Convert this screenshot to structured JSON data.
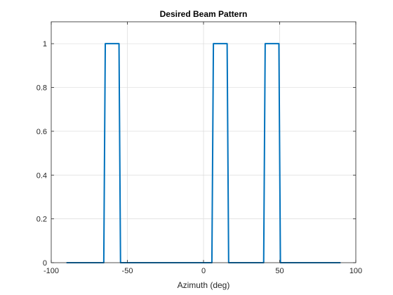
{
  "chart_data": {
    "type": "line",
    "title": "Desired Beam Pattern",
    "xlabel": "Azimuth (deg)",
    "ylabel": "",
    "xlim": [
      -100,
      100
    ],
    "ylim": [
      0,
      1.1
    ],
    "xticks": [
      -100,
      -50,
      0,
      50,
      100
    ],
    "xtick_labels": [
      "-100",
      "-50",
      "0",
      "50",
      "100"
    ],
    "yticks": [
      0,
      0.2,
      0.4,
      0.6,
      0.8,
      1
    ],
    "ytick_labels": [
      "0",
      "0.2",
      "0.4",
      "0.6",
      "0.8",
      "1"
    ],
    "grid": true,
    "legend": "none",
    "series": [
      {
        "color": "#0072BD",
        "x": [
          -90,
          -65.5,
          -64.5,
          -55.5,
          -54.5,
          5.5,
          6.5,
          15.5,
          16.5,
          39.5,
          40.5,
          49.5,
          50.5,
          90
        ],
        "y": [
          0,
          0,
          1,
          1,
          0,
          0,
          1,
          1,
          0,
          0,
          1,
          1,
          0,
          0
        ]
      }
    ]
  }
}
